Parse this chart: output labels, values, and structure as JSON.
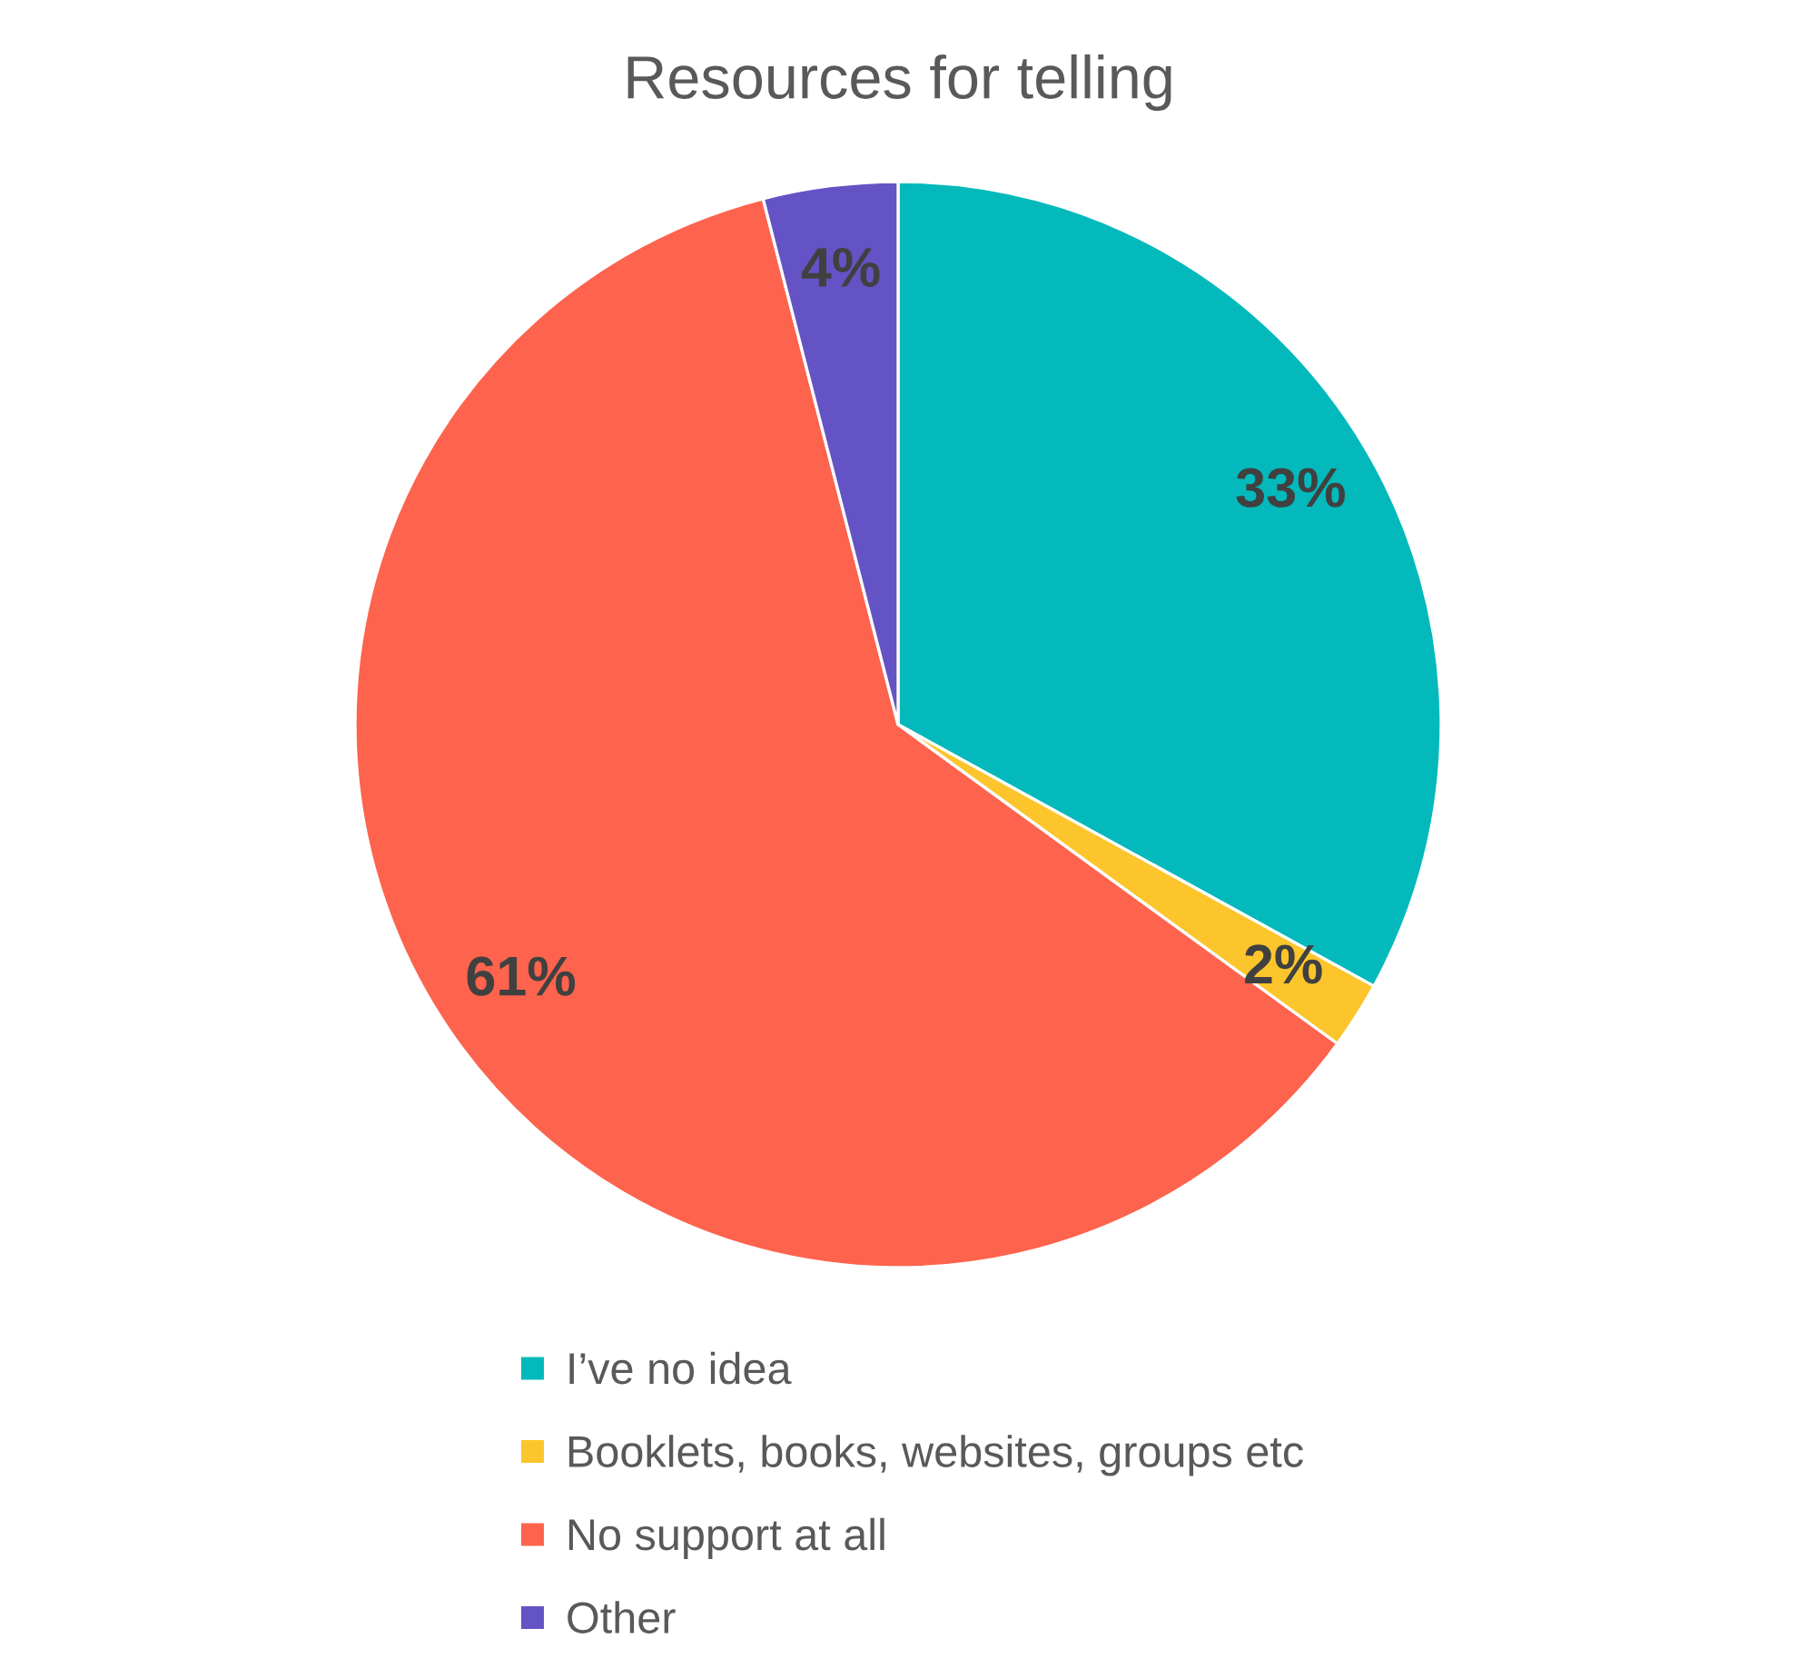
{
  "chart_data": {
    "type": "pie",
    "title": "Resources for telling",
    "categories": [
      "I’ve no idea",
      "Booklets, books, websites, groups etc",
      "No support at all",
      "Other"
    ],
    "values": [
      33,
      2,
      61,
      4
    ],
    "colors": [
      "#03b9bb",
      "#fcc52b",
      "#fd634d",
      "#6453c4"
    ],
    "value_labels": [
      "33%",
      "2%",
      "61%",
      "4%"
    ],
    "legend": "bottom"
  }
}
